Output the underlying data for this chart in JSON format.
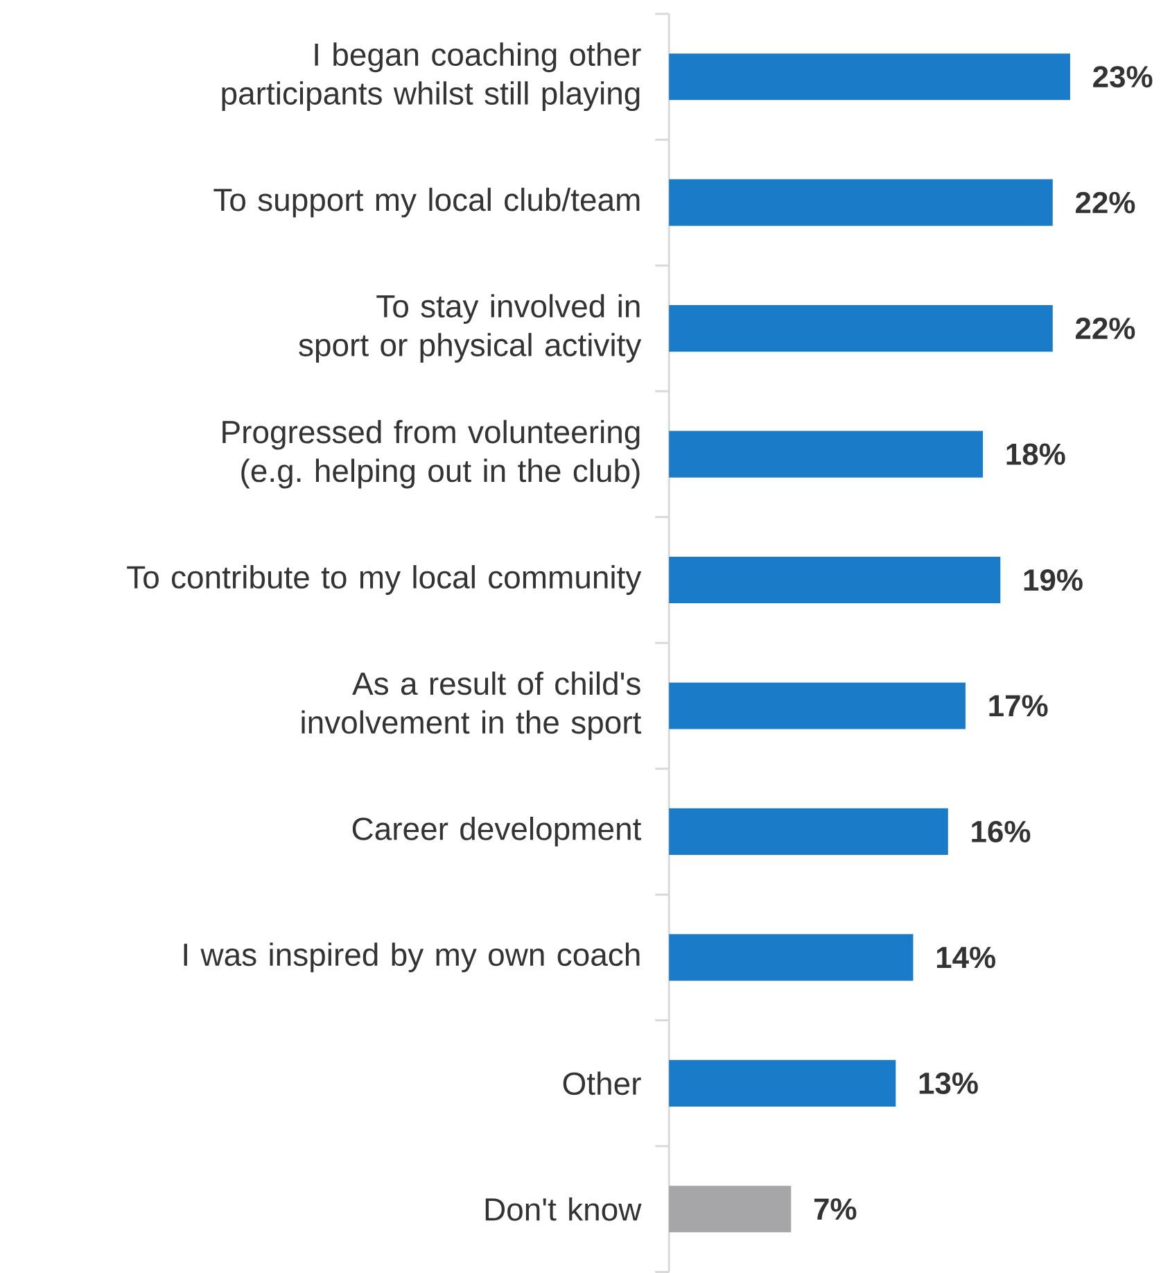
{
  "chart_data": {
    "type": "bar",
    "orientation": "horizontal",
    "categories": [
      "I began coaching other participants whilst still playing",
      "To support my local club/team",
      "To stay involved in sport or physical activity",
      "Progressed from volunteering (e.g. helping out in the club)",
      "To contribute to my local community",
      "As a result of child's involvement in the sport",
      "Career development",
      "I was inspired by my own coach",
      "Other",
      "Don't know"
    ],
    "values": [
      23,
      22,
      22,
      18,
      19,
      17,
      16,
      14,
      13,
      7
    ],
    "value_labels": [
      "23%",
      "22%",
      "22%",
      "18%",
      "19%",
      "17%",
      "16%",
      "14%",
      "13%",
      "7%"
    ],
    "colors": [
      "#1a7bc9",
      "#1a7bc9",
      "#1a7bc9",
      "#1a7bc9",
      "#1a7bc9",
      "#1a7bc9",
      "#1a7bc9",
      "#1a7bc9",
      "#1a7bc9",
      "#a6a6a8"
    ]
  }
}
